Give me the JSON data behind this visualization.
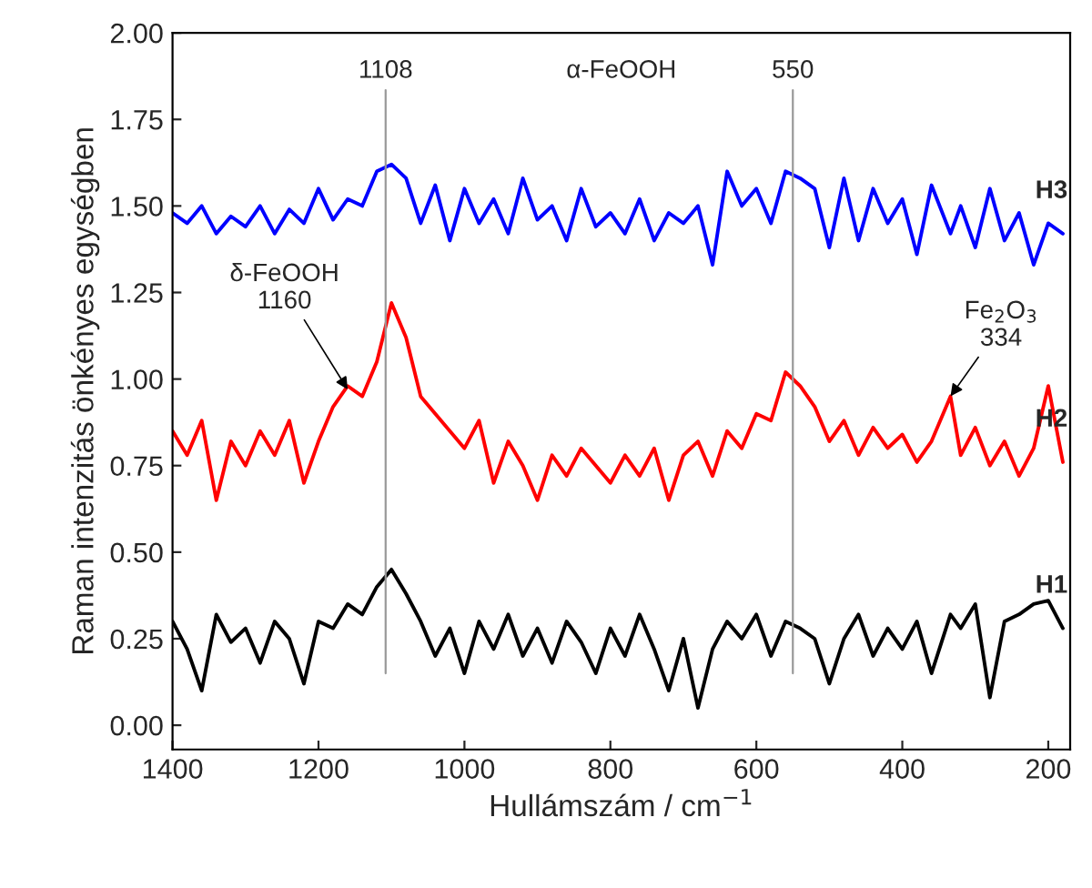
{
  "chart_data": {
    "type": "line",
    "xlabel": "Hullámszám / cm$^{−1}$",
    "ylabel": "Raman intenzitás önkényes egységben",
    "x": [
      1400,
      1380,
      1360,
      1340,
      1320,
      1300,
      1280,
      1260,
      1240,
      1220,
      1200,
      1180,
      1160,
      1140,
      1120,
      1100,
      1080,
      1060,
      1040,
      1020,
      1000,
      980,
      960,
      940,
      920,
      900,
      880,
      860,
      840,
      820,
      800,
      780,
      760,
      740,
      720,
      700,
      680,
      660,
      640,
      620,
      600,
      580,
      560,
      540,
      520,
      500,
      480,
      460,
      440,
      420,
      400,
      380,
      360,
      334,
      320,
      300,
      280,
      260,
      240,
      220,
      200,
      180
    ],
    "series": [
      {
        "name": "H3",
        "color": "#0000ff",
        "values": [
          1.48,
          1.45,
          1.5,
          1.42,
          1.47,
          1.44,
          1.5,
          1.42,
          1.49,
          1.45,
          1.55,
          1.46,
          1.52,
          1.5,
          1.6,
          1.62,
          1.58,
          1.45,
          1.56,
          1.4,
          1.55,
          1.45,
          1.52,
          1.42,
          1.58,
          1.46,
          1.5,
          1.4,
          1.55,
          1.44,
          1.48,
          1.42,
          1.52,
          1.4,
          1.48,
          1.45,
          1.5,
          1.33,
          1.6,
          1.5,
          1.55,
          1.45,
          1.6,
          1.58,
          1.55,
          1.38,
          1.58,
          1.4,
          1.55,
          1.45,
          1.52,
          1.36,
          1.56,
          1.42,
          1.5,
          1.38,
          1.55,
          1.4,
          1.48,
          1.33,
          1.45,
          1.42
        ]
      },
      {
        "name": "H2",
        "color": "#ff0000",
        "values": [
          0.85,
          0.78,
          0.88,
          0.65,
          0.82,
          0.75,
          0.85,
          0.78,
          0.88,
          0.7,
          0.82,
          0.92,
          0.98,
          0.95,
          1.05,
          1.22,
          1.12,
          0.95,
          0.9,
          0.85,
          0.8,
          0.88,
          0.7,
          0.82,
          0.75,
          0.65,
          0.78,
          0.72,
          0.8,
          0.75,
          0.7,
          0.78,
          0.72,
          0.8,
          0.65,
          0.78,
          0.82,
          0.72,
          0.85,
          0.8,
          0.9,
          0.88,
          1.02,
          0.98,
          0.92,
          0.82,
          0.88,
          0.78,
          0.86,
          0.8,
          0.84,
          0.76,
          0.82,
          0.95,
          0.78,
          0.86,
          0.75,
          0.82,
          0.72,
          0.8,
          0.98,
          0.76
        ]
      },
      {
        "name": "H1",
        "color": "#000000",
        "values": [
          0.3,
          0.22,
          0.1,
          0.32,
          0.24,
          0.28,
          0.18,
          0.3,
          0.25,
          0.12,
          0.3,
          0.28,
          0.35,
          0.32,
          0.4,
          0.45,
          0.38,
          0.3,
          0.2,
          0.28,
          0.15,
          0.3,
          0.22,
          0.32,
          0.2,
          0.28,
          0.18,
          0.3,
          0.24,
          0.15,
          0.28,
          0.2,
          0.32,
          0.22,
          0.1,
          0.25,
          0.05,
          0.22,
          0.3,
          0.25,
          0.32,
          0.2,
          0.3,
          0.28,
          0.25,
          0.12,
          0.25,
          0.32,
          0.2,
          0.28,
          0.22,
          0.3,
          0.15,
          0.32,
          0.28,
          0.35,
          0.08,
          0.3,
          0.32,
          0.35,
          0.36,
          0.28
        ]
      }
    ],
    "xlim": [
      1400,
      170
    ],
    "xticks": [
      1400,
      1200,
      1000,
      800,
      600,
      400,
      200
    ],
    "ylim": [
      -0.07,
      2.0
    ],
    "yticks": [
      {
        "value": 0,
        "label": "0.00"
      },
      {
        "value": 0.25,
        "label": "0.25"
      },
      {
        "value": 0.5,
        "label": "0.50"
      },
      {
        "value": 0.75,
        "label": "0.75"
      },
      {
        "value": 1,
        "label": "1.00"
      },
      {
        "value": 1.25,
        "label": "1.25"
      },
      {
        "value": 1.5,
        "label": "1.50"
      },
      {
        "value": 1.75,
        "label": "1.75"
      },
      {
        "value": 2,
        "label": "2.00"
      }
    ],
    "ref_lines": [
      {
        "axis": "x",
        "value": 1108,
        "label": "1108",
        "color": "#999999"
      },
      {
        "axis": "x",
        "value": 550,
        "label": "550",
        "color": "#999999"
      }
    ],
    "annotations": [
      "α-FeOOH",
      {
        "text": "δ-FeOOH\n1160",
        "x": 1160,
        "y": 0.97
      },
      {
        "text": "Fe$_{2}$O$_{3}$\n334",
        "x": 334,
        "y": 0.95
      }
    ],
    "grid": false,
    "legend": false,
    "line_style": "solid",
    "marker": "none"
  }
}
